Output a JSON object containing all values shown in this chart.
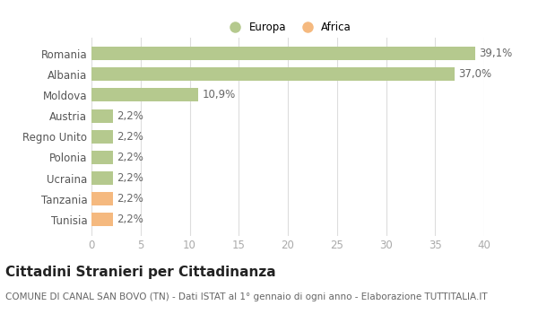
{
  "categories": [
    "Romania",
    "Albania",
    "Moldova",
    "Austria",
    "Regno Unito",
    "Polonia",
    "Ucraina",
    "Tanzania",
    "Tunisia"
  ],
  "values": [
    39.1,
    37.0,
    10.9,
    2.2,
    2.2,
    2.2,
    2.2,
    2.2,
    2.2
  ],
  "labels": [
    "39,1%",
    "37,0%",
    "10,9%",
    "2,2%",
    "2,2%",
    "2,2%",
    "2,2%",
    "2,2%",
    "2,2%"
  ],
  "colors": [
    "#b5c98e",
    "#b5c98e",
    "#b5c98e",
    "#b5c98e",
    "#b5c98e",
    "#b5c98e",
    "#b5c98e",
    "#f5b97f",
    "#f5b97f"
  ],
  "legend_europa_color": "#b5c98e",
  "legend_africa_color": "#f5b97f",
  "xlim": [
    0,
    40
  ],
  "xticks": [
    0,
    5,
    10,
    15,
    20,
    25,
    30,
    35,
    40
  ],
  "title": "Cittadini Stranieri per Cittadinanza",
  "subtitle": "COMUNE DI CANAL SAN BOVO (TN) - Dati ISTAT al 1° gennaio di ogni anno - Elaborazione TUTTITALIA.IT",
  "background_color": "#ffffff",
  "grid_color": "#dddddd",
  "bar_height": 0.65,
  "title_fontsize": 11,
  "subtitle_fontsize": 7.5,
  "tick_fontsize": 8.5,
  "label_fontsize": 8.5
}
